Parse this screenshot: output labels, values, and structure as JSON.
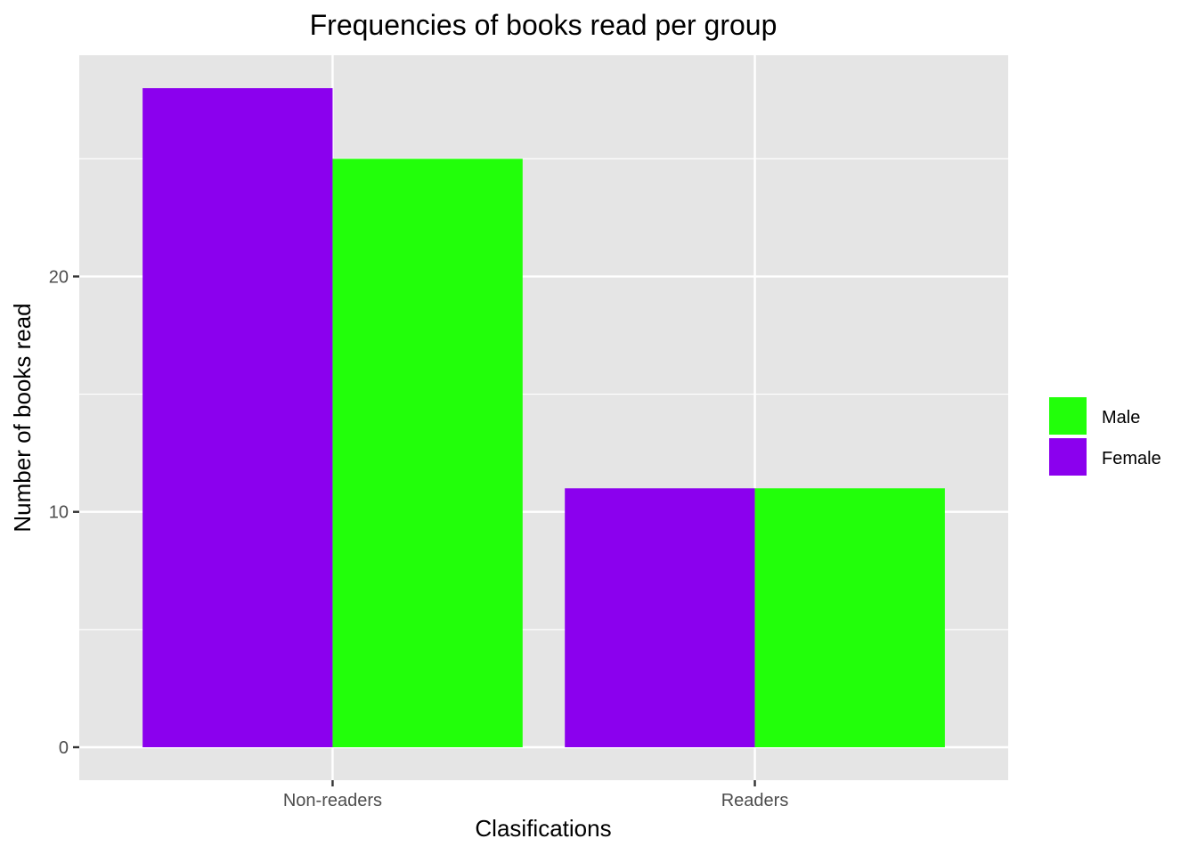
{
  "chart_data": {
    "type": "bar",
    "title": "Frequencies of books read per group",
    "xlabel": "Clasifications",
    "ylabel": "Number of books read",
    "categories": [
      "Non-readers",
      "Readers"
    ],
    "series": [
      {
        "name": "Female",
        "color": "#8B00EE",
        "values": [
          28,
          11
        ]
      },
      {
        "name": "Male",
        "color": "#22FF0A",
        "values": [
          25,
          11
        ]
      }
    ],
    "ylim": [
      -1.4,
      29.4
    ],
    "yticks": [
      0,
      10,
      20
    ],
    "grid": true,
    "legend": {
      "placement": "right",
      "entries": [
        {
          "label": "Male",
          "color": "#22FF0A"
        },
        {
          "label": "Female",
          "color": "#8B00EE"
        }
      ]
    },
    "panel_background": "#E5E5E5",
    "gridline_color": "#FFFFFF"
  }
}
